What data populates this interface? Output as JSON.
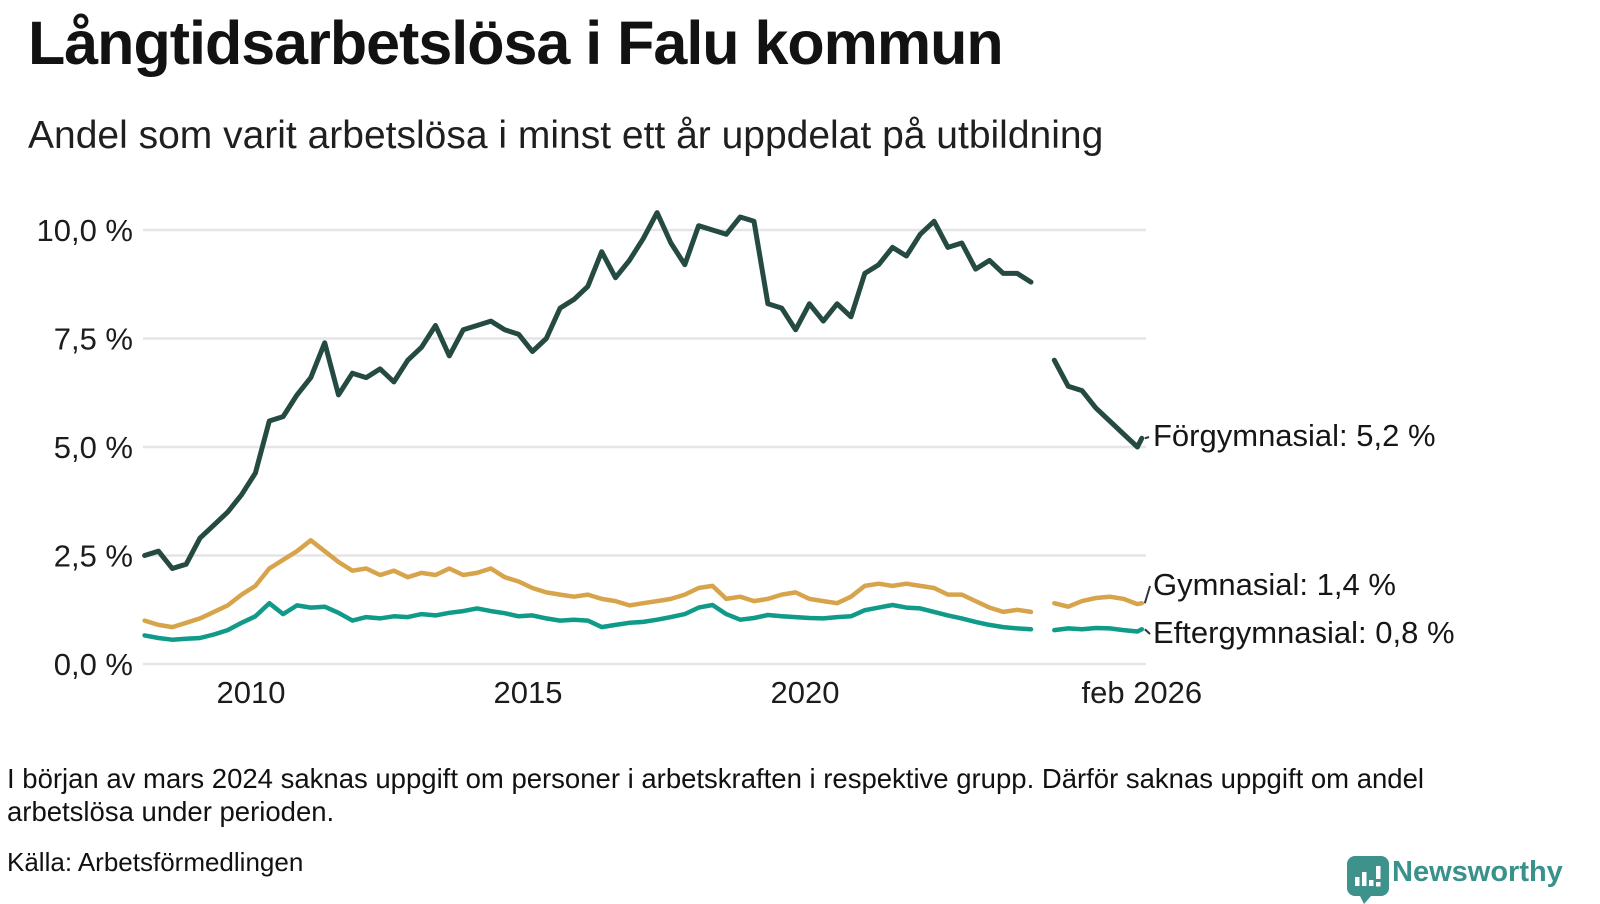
{
  "header": {
    "title": "Långtidsarbetslösa i Falu kommun",
    "subtitle": "Andel som varit arbetslösa i minst ett år uppdelat på utbildning"
  },
  "chart_data": {
    "type": "line",
    "title": "Långtidsarbetslösa i Falu kommun",
    "subtitle": "Andel som varit arbetslösa i minst ett år uppdelat på utbildning",
    "unit": "percent, share unemployed at least one year",
    "grid": "horizontal",
    "legend_position": "right-edge-labels",
    "ylim": [
      0,
      10.8
    ],
    "xlim": [
      2007.9,
      2026.3
    ],
    "y_ticks": [
      {
        "value": 10,
        "label": "10,0 %"
      },
      {
        "value": 7.5,
        "label": "7,5 %"
      },
      {
        "value": 5,
        "label": "5,0 %"
      },
      {
        "value": 2.5,
        "label": "2,5 %"
      },
      {
        "value": 0,
        "label": "0,0 %"
      }
    ],
    "x_ticks": [
      {
        "value": 2010,
        "label": "2010"
      },
      {
        "value": 2015,
        "label": "2015"
      },
      {
        "value": 2020,
        "label": "2020"
      },
      {
        "value": 2026.08,
        "label": "feb 2026"
      }
    ],
    "data_gap": "mars 2024 – juni 2024 (uppgift saknas)",
    "x_pre": [
      2008.08,
      2008.33,
      2008.58,
      2008.83,
      2009.08,
      2009.33,
      2009.58,
      2009.83,
      2010.08,
      2010.33,
      2010.58,
      2010.83,
      2011.08,
      2011.33,
      2011.58,
      2011.83,
      2012.08,
      2012.33,
      2012.58,
      2012.83,
      2013.08,
      2013.33,
      2013.58,
      2013.83,
      2014.08,
      2014.33,
      2014.58,
      2014.83,
      2015.08,
      2015.33,
      2015.58,
      2015.83,
      2016.08,
      2016.33,
      2016.58,
      2016.83,
      2017.08,
      2017.33,
      2017.58,
      2017.83,
      2018.08,
      2018.33,
      2018.58,
      2018.83,
      2019.08,
      2019.33,
      2019.58,
      2019.83,
      2020.08,
      2020.33,
      2020.58,
      2020.83,
      2021.08,
      2021.33,
      2021.58,
      2021.83,
      2022.08,
      2022.33,
      2022.58,
      2022.83,
      2023.08,
      2023.33,
      2023.58,
      2023.83,
      2024.08
    ],
    "x_post": [
      2024.5,
      2024.75,
      2025.0,
      2025.25,
      2025.5,
      2025.75,
      2026.0,
      2026.08
    ],
    "series": [
      {
        "key": "forgymnasial",
        "name": "Förgymnasial",
        "color": "#254a41",
        "stroke_width": 5,
        "end_label": "Förgymnasial: 5,2 %",
        "latest_value": "5,2 %",
        "y_pre": [
          2.5,
          2.6,
          2.2,
          2.3,
          2.9,
          3.2,
          3.5,
          3.9,
          4.4,
          5.6,
          5.7,
          6.2,
          6.6,
          7.4,
          6.2,
          6.7,
          6.6,
          6.8,
          6.5,
          7.0,
          7.3,
          7.8,
          7.1,
          7.7,
          7.8,
          7.9,
          7.7,
          7.6,
          7.2,
          7.5,
          8.2,
          8.4,
          8.7,
          9.5,
          8.9,
          9.3,
          9.8,
          10.4,
          9.7,
          9.2,
          10.1,
          10.0,
          9.9,
          10.3,
          10.2,
          8.3,
          8.2,
          7.7,
          8.3,
          7.9,
          8.3,
          8.0,
          9.0,
          9.2,
          9.6,
          9.4,
          9.9,
          10.2,
          9.6,
          9.7,
          9.1,
          9.3,
          9.0,
          9.0,
          8.8
        ],
        "y_post": [
          7.0,
          6.4,
          6.3,
          5.9,
          5.6,
          5.3,
          5.0,
          5.2
        ]
      },
      {
        "key": "gymnasial",
        "name": "Gymnasial",
        "color": "#d7a44c",
        "stroke_width": 4.5,
        "end_label": "Gymnasial: 1,4 %",
        "latest_value": "1,4 %",
        "y_pre": [
          1.0,
          0.9,
          0.85,
          0.95,
          1.05,
          1.2,
          1.35,
          1.6,
          1.8,
          2.2,
          2.4,
          2.6,
          2.85,
          2.6,
          2.35,
          2.15,
          2.2,
          2.05,
          2.15,
          2.0,
          2.1,
          2.05,
          2.2,
          2.05,
          2.1,
          2.2,
          2.0,
          1.9,
          1.75,
          1.65,
          1.6,
          1.55,
          1.6,
          1.5,
          1.45,
          1.35,
          1.4,
          1.45,
          1.5,
          1.6,
          1.75,
          1.8,
          1.5,
          1.55,
          1.45,
          1.5,
          1.6,
          1.65,
          1.5,
          1.45,
          1.4,
          1.55,
          1.8,
          1.85,
          1.8,
          1.85,
          1.8,
          1.75,
          1.6,
          1.6,
          1.45,
          1.3,
          1.2,
          1.25,
          1.2
        ],
        "y_post": [
          1.4,
          1.32,
          1.45,
          1.52,
          1.55,
          1.5,
          1.38,
          1.4
        ]
      },
      {
        "key": "eftergymnasial",
        "name": "Eftergymnasial",
        "color": "#109a89",
        "stroke_width": 4.5,
        "end_label": "Eftergymnasial: 0,8 %",
        "latest_value": "0,8 %",
        "y_pre": [
          0.66,
          0.6,
          0.56,
          0.58,
          0.6,
          0.68,
          0.78,
          0.95,
          1.1,
          1.4,
          1.15,
          1.35,
          1.3,
          1.32,
          1.18,
          1.0,
          1.08,
          1.05,
          1.1,
          1.08,
          1.15,
          1.12,
          1.18,
          1.22,
          1.28,
          1.22,
          1.17,
          1.1,
          1.12,
          1.05,
          1.0,
          1.02,
          1.0,
          0.85,
          0.9,
          0.95,
          0.97,
          1.02,
          1.08,
          1.15,
          1.3,
          1.36,
          1.15,
          1.02,
          1.06,
          1.13,
          1.1,
          1.08,
          1.06,
          1.05,
          1.08,
          1.1,
          1.24,
          1.3,
          1.36,
          1.3,
          1.28,
          1.2,
          1.12,
          1.05,
          0.97,
          0.9,
          0.85,
          0.82,
          0.8
        ],
        "y_post": [
          0.78,
          0.82,
          0.8,
          0.83,
          0.82,
          0.78,
          0.75,
          0.8
        ]
      }
    ]
  },
  "footnote": "I början av mars 2024 saknas uppgift om personer i arbetskraften i respektive grupp. Därför saknas uppgift om andel arbetslösa under perioden.",
  "source": "Källa: Arbetsförmedlingen",
  "branding": {
    "logo_text": "Newsworthy",
    "logo_color": "#3d928c",
    "logo_icon": "speech-bubble-bar-chart"
  }
}
